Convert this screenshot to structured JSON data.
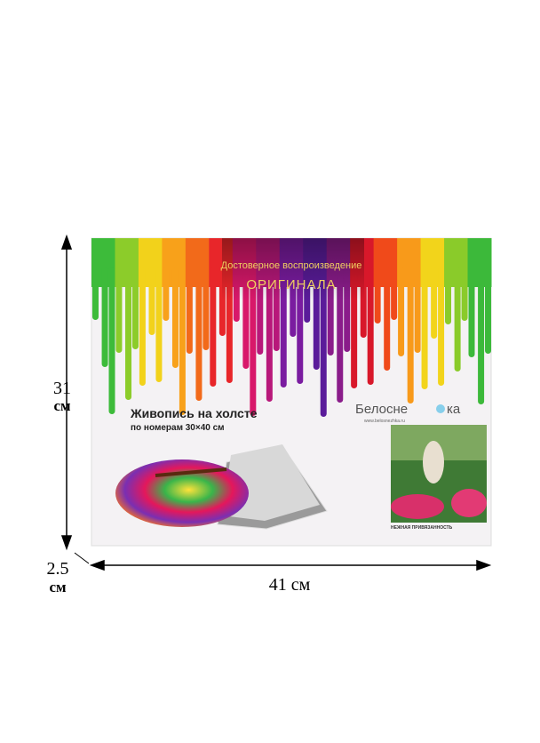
{
  "dimensions": {
    "height": "31",
    "height_unit": "см",
    "width": "41 см",
    "depth": "2.5",
    "depth_unit": "см"
  },
  "box": {
    "tagline": "Достоверное воспроизведение",
    "tagline_emphasis": "ОРИГИНАЛА",
    "title": "Живопись на холсте",
    "subtitle": "по номерам 30×40 см",
    "brand_start": "Белосне",
    "brand_end": "ка",
    "website": "www.belosnezhka.ru",
    "picture_title": "НЕЖНАЯ ПРИВЯЗАННОСТЬ"
  }
}
